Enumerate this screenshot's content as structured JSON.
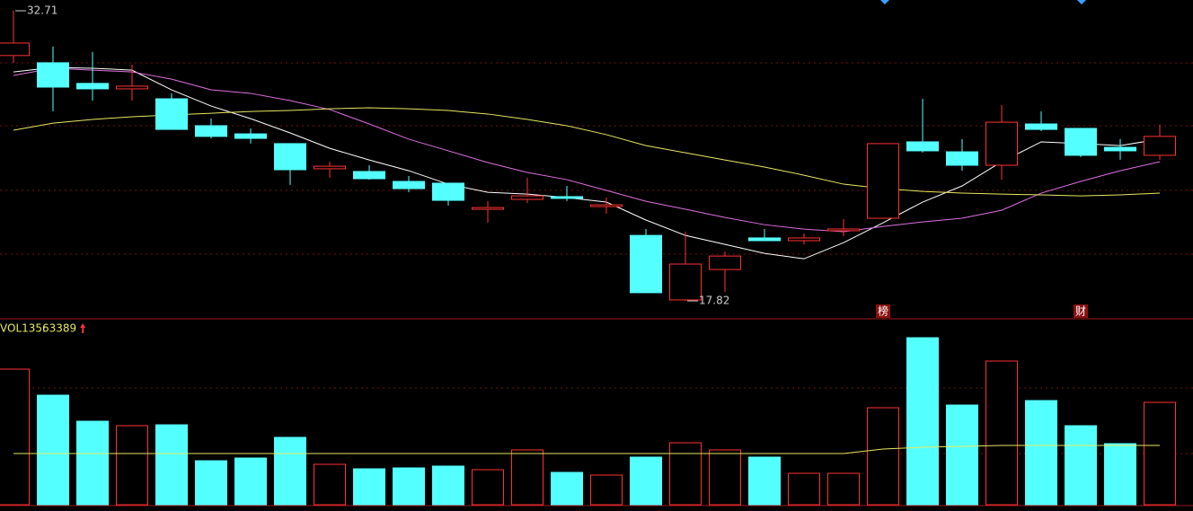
{
  "chart_data": [
    {
      "type": "candlestick",
      "up_color": "#ff3232",
      "down_color": "#54ffff",
      "ylim": [
        16.9,
        33.26
      ],
      "open": [
        30.41,
        30.04,
        28.98,
        28.7,
        28.19,
        26.81,
        26.39,
        25.89,
        24.6,
        24.46,
        23.95,
        23.86,
        22.52,
        23.03,
        23.17,
        22.66,
        21.18,
        17.87,
        19.43,
        21.05,
        20.91,
        21.42,
        22.06,
        25.98,
        25.47,
        24.78,
        26.9,
        26.67,
        25.7,
        25.29
      ],
      "high": [
        32.71,
        30.87,
        30.59,
        29.94,
        28.47,
        27.18,
        26.67,
        25.89,
        24.96,
        24.78,
        24.23,
        23.86,
        22.94,
        24.14,
        23.72,
        23.12,
        21.51,
        21.37,
        20.35,
        21.51,
        21.28,
        22.01,
        25.89,
        28.19,
        26.12,
        27.87,
        27.55,
        26.67,
        26.12,
        26.86
      ],
      "low": [
        30.04,
        27.55,
        28.1,
        28.1,
        26.62,
        26.16,
        25.89,
        23.77,
        24.14,
        24.04,
        23.4,
        22.71,
        21.83,
        22.84,
        22.94,
        22.29,
        18.24,
        17.82,
        18.28,
        20.91,
        20.72,
        21.14,
        22.06,
        25.43,
        24.5,
        24.04,
        26.53,
        25.2,
        25.06,
        25.06
      ],
      "close": [
        31.05,
        28.79,
        28.7,
        28.84,
        26.62,
        26.26,
        26.16,
        24.55,
        24.73,
        24.09,
        23.58,
        22.98,
        22.61,
        23.21,
        23.08,
        22.75,
        18.24,
        19.71,
        20.12,
        20.91,
        21.05,
        21.51,
        25.89,
        25.52,
        24.78,
        26.99,
        26.62,
        25.29,
        25.52,
        26.26
      ],
      "lines": [
        {
          "color": "#ffffff",
          "values": [
            29.57,
            29.8,
            29.76,
            29.66,
            28.65,
            27.82,
            27.17,
            26.44,
            25.65,
            25.05,
            24.5,
            23.81,
            23.39,
            23.3,
            23.12,
            22.89,
            21.97,
            21.18,
            20.72,
            20.26,
            19.98,
            20.81,
            21.83,
            22.89,
            23.72,
            24.96,
            25.98,
            25.89,
            25.79,
            26.12
          ]
        },
        {
          "color": "#e070e0",
          "values": [
            29.39,
            29.76,
            29.66,
            29.57,
            29.2,
            28.65,
            28.47,
            28.1,
            27.64,
            26.9,
            26.12,
            25.52,
            24.92,
            24.41,
            24.04,
            23.49,
            22.93,
            22.52,
            22.1,
            21.73,
            21.5,
            21.37,
            21.64,
            21.87,
            22.06,
            22.47,
            23.35,
            23.95,
            24.5,
            24.96
          ]
        },
        {
          "color": "#e8e860",
          "values": [
            26.58,
            26.94,
            27.13,
            27.27,
            27.36,
            27.45,
            27.54,
            27.59,
            27.68,
            27.73,
            27.68,
            27.59,
            27.41,
            27.13,
            26.81,
            26.35,
            25.79,
            25.42,
            25.05,
            24.69,
            24.27,
            23.81,
            23.58,
            23.44,
            23.35,
            23.3,
            23.26,
            23.21,
            23.26,
            23.35
          ]
        }
      ],
      "markers": [
        {
          "index": 22,
          "label": "榜"
        },
        {
          "index": 27,
          "label": "财"
        }
      ]
    },
    {
      "type": "bar",
      "ylim": [
        0,
        114000
      ],
      "readout_label": "VOL135:",
      "values": [
        83960,
        67830,
        51710,
        48930,
        49480,
        27240,
        28910,
        41700,
        25020,
        22240,
        22800,
        23910,
        21680,
        33920,
        20020,
        18350,
        29470,
        38370,
        33920,
        29470,
        19460,
        19460,
        60050,
        103420,
        61720,
        88960,
        64500,
        48930,
        37810,
        63389
      ],
      "ma": {
        "color": "#e8e860",
        "values": [
          31690,
          31690,
          31690,
          31690,
          31690,
          31690,
          31690,
          31690,
          31690,
          31690,
          31690,
          31690,
          31690,
          31690,
          31690,
          31690,
          31690,
          31690,
          31690,
          31690,
          31690,
          31690,
          34470,
          35580,
          36140,
          36700,
          36700,
          36700,
          36700,
          36700
        ]
      }
    }
  ]
}
